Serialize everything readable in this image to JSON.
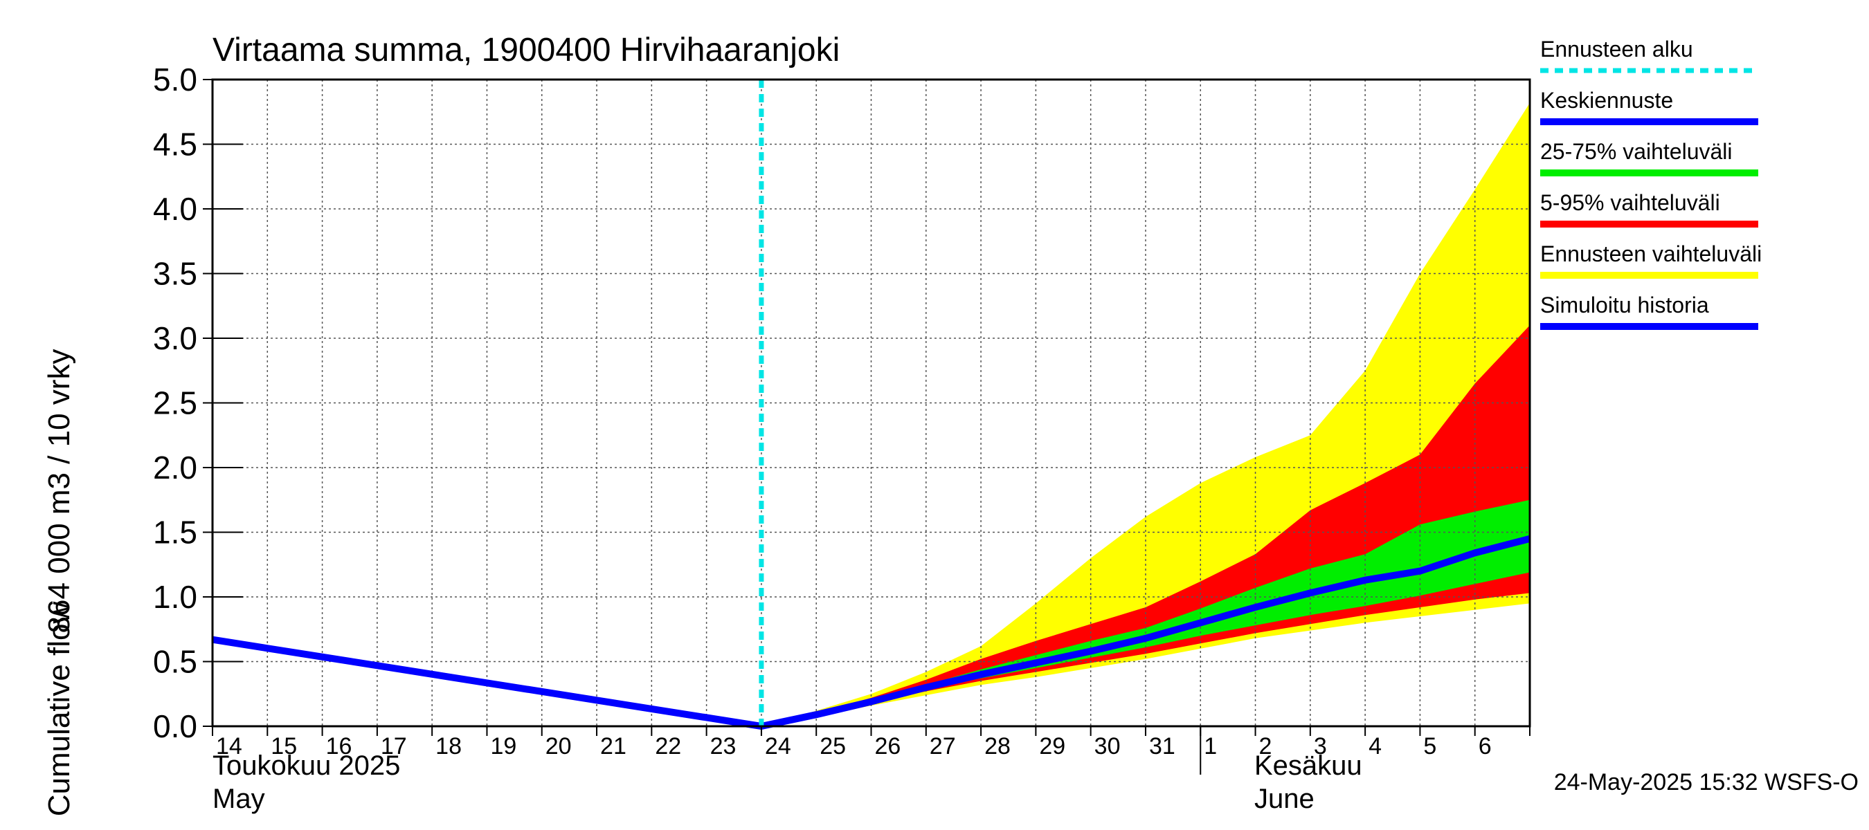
{
  "chart_data": {
    "type": "area",
    "title": "Virtaama summa, 1900400 Hirvihaaranjoki",
    "ylabel_line1": "864 000 m3 / 10 vrky",
    "ylabel_line2": "Cumulative flow",
    "ylim": [
      0,
      5
    ],
    "yticks": [
      "0.0",
      "0.5",
      "1.0",
      "1.5",
      "2.0",
      "2.5",
      "3.0",
      "3.5",
      "4.0",
      "4.5",
      "5.0"
    ],
    "x_start_day": 14,
    "x_end_day": 38,
    "day_labels": [
      "14",
      "15",
      "16",
      "17",
      "18",
      "19",
      "20",
      "21",
      "22",
      "23",
      "24",
      "25",
      "26",
      "27",
      "28",
      "29",
      "30",
      "31",
      "1",
      "2",
      "3",
      "4",
      "5",
      "6"
    ],
    "month_labels": {
      "may_fi": "Toukokuu  2025",
      "may_en": "May",
      "june_fi": "Kesäkuu",
      "june_en": "June"
    },
    "month_boundary_day": 32,
    "forecast_start_day": 24,
    "legend": [
      {
        "label": "Ennusteen alku",
        "color": "#00e5e5",
        "style": "dashed"
      },
      {
        "label": "Keskiennuste",
        "color": "#0000ff",
        "style": "solid"
      },
      {
        "label": "25-75% vaihteluväli",
        "color": "#00ee00",
        "style": "solid"
      },
      {
        "label": "5-95% vaihteluväli",
        "color": "#ff0000",
        "style": "solid"
      },
      {
        "label": "Ennusteen vaihteluväli",
        "color": "#ffff00",
        "style": "solid"
      },
      {
        "label": "Simuloitu historia",
        "color": "#0000ff",
        "style": "solid"
      }
    ],
    "series": [
      {
        "name": "Simuloitu historia",
        "x": [
          14,
          24
        ],
        "values": [
          0.67,
          0.0
        ]
      },
      {
        "name": "Ennusteen vaihteluväli max",
        "x": [
          24,
          25,
          26,
          27,
          28,
          29,
          30,
          31,
          32,
          33,
          34,
          35,
          36,
          37,
          38
        ],
        "values": [
          0.0,
          0.12,
          0.25,
          0.42,
          0.62,
          0.95,
          1.3,
          1.62,
          1.88,
          2.08,
          2.25,
          2.75,
          3.5,
          4.15,
          4.82
        ]
      },
      {
        "name": "Ennusteen vaihteluväli min",
        "x": [
          24,
          25,
          26,
          27,
          28,
          29,
          30,
          31,
          32,
          33,
          34,
          35,
          36,
          37,
          38
        ],
        "values": [
          0.0,
          0.07,
          0.16,
          0.24,
          0.32,
          0.38,
          0.45,
          0.52,
          0.6,
          0.68,
          0.74,
          0.8,
          0.85,
          0.9,
          0.95
        ]
      },
      {
        "name": "5-95% upper",
        "x": [
          24,
          25,
          26,
          27,
          28,
          29,
          30,
          31,
          32,
          33,
          34,
          35,
          36,
          37,
          38
        ],
        "values": [
          0.0,
          0.1,
          0.22,
          0.36,
          0.52,
          0.66,
          0.79,
          0.92,
          1.12,
          1.33,
          1.67,
          1.88,
          2.1,
          2.65,
          3.1
        ]
      },
      {
        "name": "5-95% lower",
        "x": [
          24,
          25,
          26,
          27,
          28,
          29,
          30,
          31,
          32,
          33,
          34,
          35,
          36,
          37,
          38
        ],
        "values": [
          0.0,
          0.08,
          0.18,
          0.27,
          0.35,
          0.42,
          0.49,
          0.56,
          0.64,
          0.72,
          0.79,
          0.86,
          0.92,
          0.98,
          1.03
        ]
      },
      {
        "name": "25-75% upper",
        "x": [
          24,
          25,
          26,
          27,
          28,
          29,
          30,
          31,
          32,
          33,
          34,
          35,
          36,
          37,
          38
        ],
        "values": [
          0.0,
          0.09,
          0.2,
          0.32,
          0.44,
          0.55,
          0.66,
          0.76,
          0.91,
          1.07,
          1.22,
          1.33,
          1.56,
          1.66,
          1.75
        ]
      },
      {
        "name": "25-75% lower",
        "x": [
          24,
          25,
          26,
          27,
          28,
          29,
          30,
          31,
          32,
          33,
          34,
          35,
          36,
          37,
          38
        ],
        "values": [
          0.0,
          0.08,
          0.19,
          0.29,
          0.37,
          0.45,
          0.53,
          0.61,
          0.7,
          0.78,
          0.86,
          0.93,
          1.01,
          1.1,
          1.19
        ]
      },
      {
        "name": "Keskiennuste",
        "x": [
          24,
          25,
          26,
          27,
          28,
          29,
          30,
          31,
          32,
          33,
          34,
          35,
          36,
          37,
          38
        ],
        "values": [
          0.0,
          0.09,
          0.19,
          0.3,
          0.4,
          0.49,
          0.58,
          0.68,
          0.8,
          0.92,
          1.03,
          1.13,
          1.2,
          1.34,
          1.45
        ]
      }
    ],
    "timestamp": "24-May-2025 15:32 WSFS-O"
  }
}
